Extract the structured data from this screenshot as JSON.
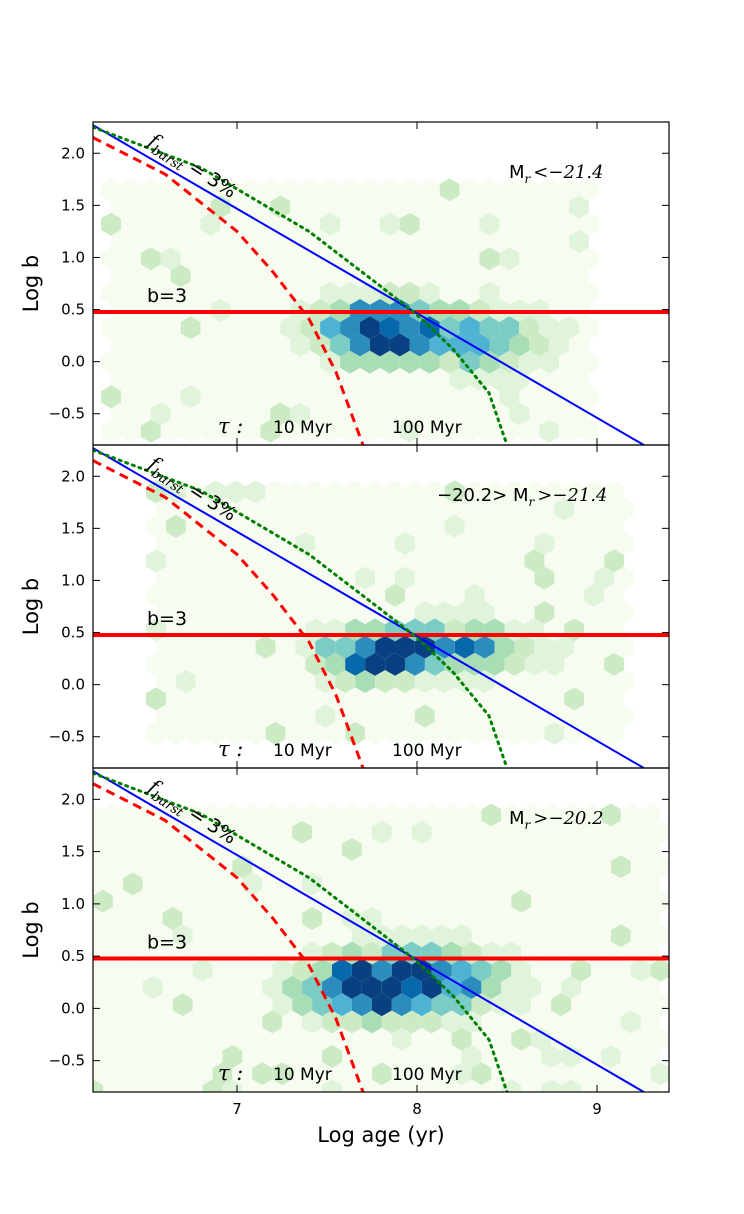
{
  "chart_data": [
    {
      "type": "heatmap",
      "subtype": "hexbin with overlaid lines",
      "panel_label": "M_r <−21.4",
      "label_parts": [
        "M",
        "r",
        "<−21.4"
      ],
      "ylabel": "Log b",
      "xlabel": "",
      "xlim": [
        6.2,
        9.4
      ],
      "ylim": [
        -0.8,
        2.3
      ],
      "xticks": [
        7,
        8,
        9
      ],
      "yticks": [
        2.0,
        1.5,
        1.0,
        0.5,
        0.0,
        -0.5
      ],
      "ytick_labels": [
        "2.0",
        "1.5",
        "1.0",
        "0.5",
        "0.0",
        "−0.5"
      ],
      "background_x_range": [
        6.3,
        9.0
      ],
      "background_y_range": [
        -0.8,
        1.65
      ],
      "density_peaks": [
        {
          "x": 7.8,
          "y": 0.3,
          "weight": 1.0
        },
        {
          "x": 8.4,
          "y": 0.2,
          "weight": 0.6
        }
      ],
      "density_spread": [
        0.35,
        0.3
      ],
      "hline": {
        "y": 0.477,
        "label": "b=3",
        "color": "#ff0000"
      },
      "lines": [
        {
          "name": "",
          "style": "solid",
          "color": "#0000ff",
          "x": [
            6.2,
            9.26
          ],
          "y": [
            2.27,
            -0.8
          ]
        },
        {
          "name": "",
          "style": "dashed",
          "color": "#ff0000",
          "x": [
            6.2,
            6.6,
            7.0,
            7.2,
            7.4,
            7.55,
            7.7
          ],
          "y": [
            2.15,
            1.8,
            1.25,
            0.86,
            0.41,
            -0.1,
            -0.8
          ]
        },
        {
          "name": "",
          "style": "dotted",
          "color": "#007f00",
          "x": [
            6.2,
            6.8,
            7.4,
            7.8,
            8.0,
            8.2,
            8.4,
            8.5
          ],
          "y": [
            2.25,
            1.86,
            1.25,
            0.72,
            0.45,
            0.12,
            -0.3,
            -0.8
          ]
        }
      ],
      "annotations": {
        "fburst": "= 3%",
        "fburst_symbol": "f",
        "fburst_sub": "burst",
        "tau": "τ :",
        "tau_10": "10 Myr",
        "tau_100": "100 Myr"
      }
    },
    {
      "type": "heatmap",
      "subtype": "hexbin with overlaid lines",
      "panel_label": "−20.2> M_r >−21.4",
      "label_parts": [
        "−20.2> M",
        "r",
        ">−21.4"
      ],
      "ylabel": "Log b",
      "xlabel": "",
      "xlim": [
        6.2,
        9.4
      ],
      "ylim": [
        -0.8,
        2.3
      ],
      "xticks": [
        7,
        8,
        9
      ],
      "yticks": [
        2.0,
        1.5,
        1.0,
        0.5,
        0.0,
        -0.5
      ],
      "ytick_labels": [
        "2.0",
        "1.5",
        "1.0",
        "0.5",
        "0.0",
        "−0.5"
      ],
      "background_x_range": [
        6.55,
        9.15
      ],
      "background_y_range": [
        -0.5,
        1.85
      ],
      "density_peaks": [
        {
          "x": 7.8,
          "y": 0.3,
          "weight": 1.0
        },
        {
          "x": 8.3,
          "y": 0.35,
          "weight": 0.6
        }
      ],
      "density_spread": [
        0.33,
        0.25
      ],
      "hline": {
        "y": 0.477,
        "label": "b=3",
        "color": "#ff0000"
      },
      "lines": [
        {
          "name": "",
          "style": "solid",
          "color": "#0000ff",
          "x": [
            6.2,
            9.26
          ],
          "y": [
            2.27,
            -0.8
          ]
        },
        {
          "name": "",
          "style": "dashed",
          "color": "#ff0000",
          "x": [
            6.2,
            6.6,
            7.0,
            7.2,
            7.4,
            7.55,
            7.7
          ],
          "y": [
            2.15,
            1.8,
            1.25,
            0.86,
            0.41,
            -0.1,
            -0.8
          ]
        },
        {
          "name": "",
          "style": "dotted",
          "color": "#007f00",
          "x": [
            6.2,
            6.8,
            7.4,
            7.8,
            8.0,
            8.2,
            8.4,
            8.5
          ],
          "y": [
            2.25,
            1.86,
            1.25,
            0.72,
            0.45,
            0.12,
            -0.3,
            -0.8
          ]
        }
      ],
      "annotations": {
        "fburst": "= 3%",
        "fburst_symbol": "f",
        "fburst_sub": "burst",
        "tau": "τ :",
        "tau_10": "10 Myr",
        "tau_100": "100 Myr"
      }
    },
    {
      "type": "heatmap",
      "subtype": "hexbin with overlaid lines",
      "panel_label": "M_r >−20.2",
      "label_parts": [
        "M",
        "r",
        ">−20.2"
      ],
      "ylabel": "Log b",
      "xlabel": "Log age (yr)",
      "xlim": [
        6.2,
        9.4
      ],
      "ylim": [
        -0.8,
        2.3
      ],
      "xticks": [
        7,
        8,
        9
      ],
      "yticks": [
        2.0,
        1.5,
        1.0,
        0.5,
        0.0,
        -0.5
      ],
      "ytick_labels": [
        "2.0",
        "1.5",
        "1.0",
        "0.5",
        "0.0",
        "−0.5"
      ],
      "background_x_range": [
        6.2,
        9.4
      ],
      "background_y_range": [
        -0.8,
        1.85
      ],
      "density_peaks": [
        {
          "x": 7.75,
          "y": 0.2,
          "weight": 1.0
        },
        {
          "x": 8.2,
          "y": 0.3,
          "weight": 0.5
        }
      ],
      "density_spread": [
        0.4,
        0.32
      ],
      "hline": {
        "y": 0.477,
        "label": "b=3",
        "color": "#ff0000"
      },
      "lines": [
        {
          "name": "",
          "style": "solid",
          "color": "#0000ff",
          "x": [
            6.2,
            9.26
          ],
          "y": [
            2.27,
            -0.8
          ]
        },
        {
          "name": "",
          "style": "dashed",
          "color": "#ff0000",
          "x": [
            6.2,
            6.6,
            7.0,
            7.2,
            7.4,
            7.55,
            7.7
          ],
          "y": [
            2.15,
            1.8,
            1.25,
            0.86,
            0.41,
            -0.1,
            -0.8
          ]
        },
        {
          "name": "",
          "style": "dotted",
          "color": "#007f00",
          "x": [
            6.2,
            6.8,
            7.4,
            7.8,
            8.0,
            8.2,
            8.4,
            8.5
          ],
          "y": [
            2.25,
            1.86,
            1.25,
            0.72,
            0.45,
            0.12,
            -0.3,
            -0.8
          ]
        }
      ],
      "annotations": {
        "fburst": "= 3%",
        "fburst_symbol": "f",
        "fburst_sub": "burst",
        "tau": "τ :",
        "tau_10": "10 Myr",
        "tau_100": "100 Myr"
      }
    }
  ],
  "colors": {
    "hex_scale": [
      "#f7fcf0",
      "#e0f3db",
      "#ccebc5",
      "#a8ddb5",
      "#7bccc4",
      "#4eb3d3",
      "#2b8cbe",
      "#0868ac",
      "#084081"
    ],
    "axes": "#000000"
  }
}
